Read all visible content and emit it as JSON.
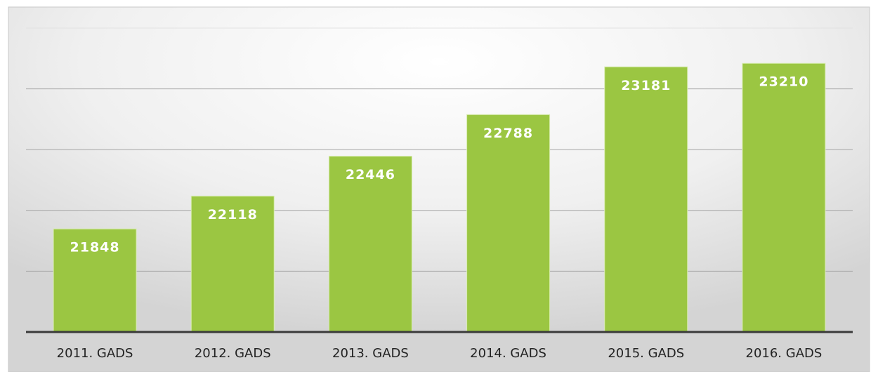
{
  "chart_data": {
    "type": "bar",
    "categories": [
      "2011. GADS",
      "2012. GADS",
      "2013. GADS",
      "2014. GADS",
      "2015. GADS",
      "2016. GADS"
    ],
    "values": [
      21848,
      22118,
      22446,
      22788,
      23181,
      23210
    ],
    "color": "#9bc642",
    "ylim": [
      21000,
      23500
    ],
    "yticks": [
      21500,
      22000,
      22500,
      23000,
      23500
    ],
    "grid": true
  }
}
